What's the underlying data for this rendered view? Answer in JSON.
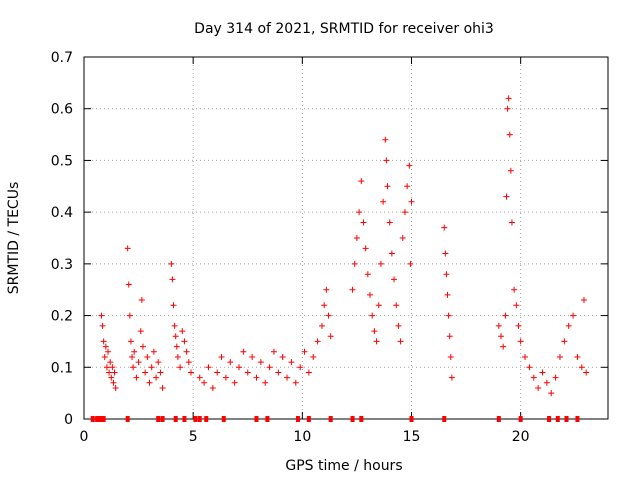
{
  "chart_data": {
    "type": "scatter",
    "title": "Day 314 of 2021, SRMTID for receiver ohi3",
    "xlabel": "GPS time / hours",
    "ylabel": "SRMTID / TECUs",
    "xlim": [
      0,
      24
    ],
    "ylim": [
      0,
      0.7
    ],
    "xticks": [
      0,
      5,
      10,
      15,
      20
    ],
    "xtick_labels": [
      "0",
      "5",
      "10",
      "15",
      "20"
    ],
    "yticks": [
      0,
      0.1,
      0.2,
      0.3,
      0.4,
      0.5,
      0.6,
      0.7
    ],
    "ytick_labels": [
      "0",
      "0.1",
      "0.2",
      "0.3",
      "0.4",
      "0.5",
      "0.6",
      "0.7"
    ],
    "grid": true,
    "marker": "plus",
    "series": [
      {
        "name": "SRMTID",
        "color": "#ff0000",
        "points": [
          [
            0.8,
            0.2
          ],
          [
            0.85,
            0.18
          ],
          [
            0.9,
            0.15
          ],
          [
            0.95,
            0.12
          ],
          [
            1.0,
            0.14
          ],
          [
            1.05,
            0.1
          ],
          [
            1.1,
            0.13
          ],
          [
            1.15,
            0.09
          ],
          [
            1.2,
            0.11
          ],
          [
            1.25,
            0.08
          ],
          [
            1.3,
            0.1
          ],
          [
            1.35,
            0.07
          ],
          [
            1.4,
            0.09
          ],
          [
            1.45,
            0.06
          ],
          [
            2.0,
            0.33
          ],
          [
            2.05,
            0.26
          ],
          [
            2.1,
            0.2
          ],
          [
            2.15,
            0.15
          ],
          [
            2.2,
            0.12
          ],
          [
            2.25,
            0.1
          ],
          [
            2.3,
            0.13
          ],
          [
            2.4,
            0.08
          ],
          [
            2.5,
            0.11
          ],
          [
            2.6,
            0.17
          ],
          [
            2.65,
            0.23
          ],
          [
            2.7,
            0.14
          ],
          [
            2.8,
            0.09
          ],
          [
            2.9,
            0.12
          ],
          [
            3.0,
            0.07
          ],
          [
            3.1,
            0.1
          ],
          [
            3.2,
            0.13
          ],
          [
            3.3,
            0.08
          ],
          [
            3.4,
            0.11
          ],
          [
            3.5,
            0.09
          ],
          [
            3.6,
            0.06
          ],
          [
            4.0,
            0.3
          ],
          [
            4.05,
            0.27
          ],
          [
            4.1,
            0.22
          ],
          [
            4.15,
            0.18
          ],
          [
            4.2,
            0.16
          ],
          [
            4.25,
            0.14
          ],
          [
            4.3,
            0.12
          ],
          [
            4.4,
            0.1
          ],
          [
            4.5,
            0.17
          ],
          [
            4.6,
            0.15
          ],
          [
            4.7,
            0.13
          ],
          [
            4.8,
            0.11
          ],
          [
            4.9,
            0.09
          ],
          [
            5.3,
            0.08
          ],
          [
            5.5,
            0.07
          ],
          [
            5.7,
            0.1
          ],
          [
            5.9,
            0.06
          ],
          [
            6.1,
            0.09
          ],
          [
            6.3,
            0.12
          ],
          [
            6.5,
            0.08
          ],
          [
            6.7,
            0.11
          ],
          [
            6.9,
            0.07
          ],
          [
            7.1,
            0.1
          ],
          [
            7.3,
            0.13
          ],
          [
            7.5,
            0.09
          ],
          [
            7.7,
            0.12
          ],
          [
            7.9,
            0.08
          ],
          [
            8.1,
            0.11
          ],
          [
            8.3,
            0.07
          ],
          [
            8.5,
            0.1
          ],
          [
            8.7,
            0.13
          ],
          [
            8.9,
            0.09
          ],
          [
            9.1,
            0.12
          ],
          [
            9.3,
            0.08
          ],
          [
            9.5,
            0.11
          ],
          [
            9.7,
            0.07
          ],
          [
            9.9,
            0.1
          ],
          [
            10.1,
            0.13
          ],
          [
            10.3,
            0.09
          ],
          [
            10.5,
            0.12
          ],
          [
            10.7,
            0.15
          ],
          [
            10.9,
            0.18
          ],
          [
            11.0,
            0.22
          ],
          [
            11.1,
            0.25
          ],
          [
            11.2,
            0.2
          ],
          [
            11.3,
            0.16
          ],
          [
            12.3,
            0.25
          ],
          [
            12.4,
            0.3
          ],
          [
            12.5,
            0.35
          ],
          [
            12.6,
            0.4
          ],
          [
            12.7,
            0.46
          ],
          [
            12.8,
            0.38
          ],
          [
            12.9,
            0.33
          ],
          [
            13.0,
            0.28
          ],
          [
            13.1,
            0.24
          ],
          [
            13.2,
            0.2
          ],
          [
            13.3,
            0.17
          ],
          [
            13.4,
            0.15
          ],
          [
            13.5,
            0.22
          ],
          [
            13.6,
            0.3
          ],
          [
            13.7,
            0.42
          ],
          [
            13.8,
            0.54
          ],
          [
            13.85,
            0.5
          ],
          [
            13.9,
            0.45
          ],
          [
            14.0,
            0.38
          ],
          [
            14.1,
            0.32
          ],
          [
            14.2,
            0.27
          ],
          [
            14.3,
            0.22
          ],
          [
            14.4,
            0.18
          ],
          [
            14.5,
            0.15
          ],
          [
            14.6,
            0.35
          ],
          [
            14.7,
            0.4
          ],
          [
            14.8,
            0.45
          ],
          [
            14.9,
            0.49
          ],
          [
            15.0,
            0.42
          ],
          [
            14.95,
            0.3
          ],
          [
            16.5,
            0.37
          ],
          [
            16.55,
            0.32
          ],
          [
            16.6,
            0.28
          ],
          [
            16.65,
            0.24
          ],
          [
            16.7,
            0.2
          ],
          [
            16.75,
            0.16
          ],
          [
            16.8,
            0.12
          ],
          [
            16.85,
            0.08
          ],
          [
            19.0,
            0.18
          ],
          [
            19.1,
            0.16
          ],
          [
            19.2,
            0.14
          ],
          [
            19.3,
            0.2
          ],
          [
            19.35,
            0.43
          ],
          [
            19.4,
            0.6
          ],
          [
            19.45,
            0.62
          ],
          [
            19.5,
            0.55
          ],
          [
            19.55,
            0.48
          ],
          [
            19.6,
            0.38
          ],
          [
            19.7,
            0.25
          ],
          [
            19.8,
            0.22
          ],
          [
            19.9,
            0.18
          ],
          [
            20.0,
            0.15
          ],
          [
            20.2,
            0.12
          ],
          [
            20.4,
            0.1
          ],
          [
            20.6,
            0.08
          ],
          [
            20.8,
            0.06
          ],
          [
            21.0,
            0.09
          ],
          [
            21.2,
            0.07
          ],
          [
            21.4,
            0.05
          ],
          [
            21.6,
            0.08
          ],
          [
            21.8,
            0.12
          ],
          [
            22.0,
            0.15
          ],
          [
            22.2,
            0.18
          ],
          [
            22.4,
            0.2
          ],
          [
            22.6,
            0.12
          ],
          [
            22.8,
            0.1
          ],
          [
            22.9,
            0.23
          ],
          [
            23.0,
            0.09
          ]
        ]
      }
    ],
    "bottom_markers": {
      "description": "data coverage markers along y=0",
      "color": "#ff0000",
      "x": [
        0.4,
        0.6,
        0.75,
        0.9,
        2.0,
        3.4,
        3.6,
        4.2,
        4.6,
        5.1,
        5.3,
        5.6,
        6.4,
        7.9,
        8.4,
        9.8,
        10.3,
        11.3,
        12.3,
        12.7,
        15.0,
        16.5,
        19.0,
        20.0,
        21.3,
        21.7,
        22.1,
        22.6
      ]
    }
  }
}
